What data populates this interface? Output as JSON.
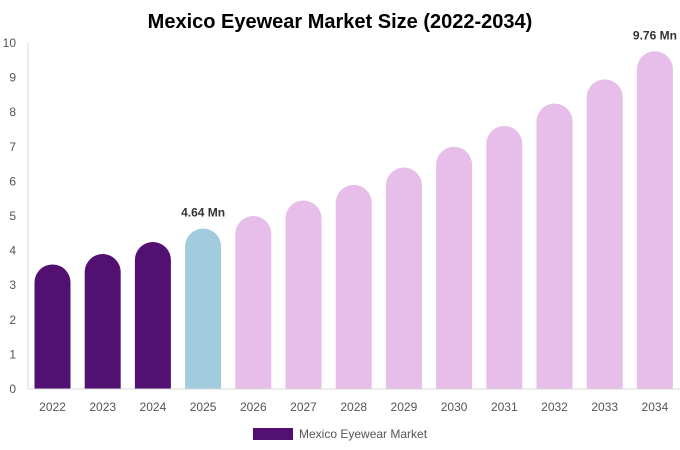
{
  "chart_data": {
    "type": "bar",
    "title": "Mexico Eyewear Market Size (2022-2034)",
    "categories": [
      "2022",
      "2023",
      "2024",
      "2025",
      "2026",
      "2027",
      "2028",
      "2029",
      "2030",
      "2031",
      "2032",
      "2033",
      "2034"
    ],
    "series": [
      {
        "name": "Mexico Eyewear Market",
        "values": [
          3.6,
          3.9,
          4.25,
          4.64,
          5.0,
          5.45,
          5.9,
          6.4,
          7.0,
          7.6,
          8.25,
          8.95,
          9.76
        ]
      }
    ],
    "ylim": [
      0,
      10
    ],
    "yticks": [
      0,
      1,
      2,
      3,
      4,
      5,
      6,
      7,
      8,
      9,
      10
    ],
    "grid": false,
    "legend": "bottom",
    "data_labels": [
      {
        "category": "2025",
        "text": "4.64 Mn"
      },
      {
        "category": "2034",
        "text": "9.76 Mn"
      }
    ],
    "colors": {
      "historical": "#521073",
      "current": "#a3cbde",
      "forecast": "#e6bee9",
      "legend_swatch": "#521073"
    },
    "bar_color_groups": [
      "historical",
      "historical",
      "historical",
      "current",
      "forecast",
      "forecast",
      "forecast",
      "forecast",
      "forecast",
      "forecast",
      "forecast",
      "forecast",
      "forecast"
    ]
  }
}
